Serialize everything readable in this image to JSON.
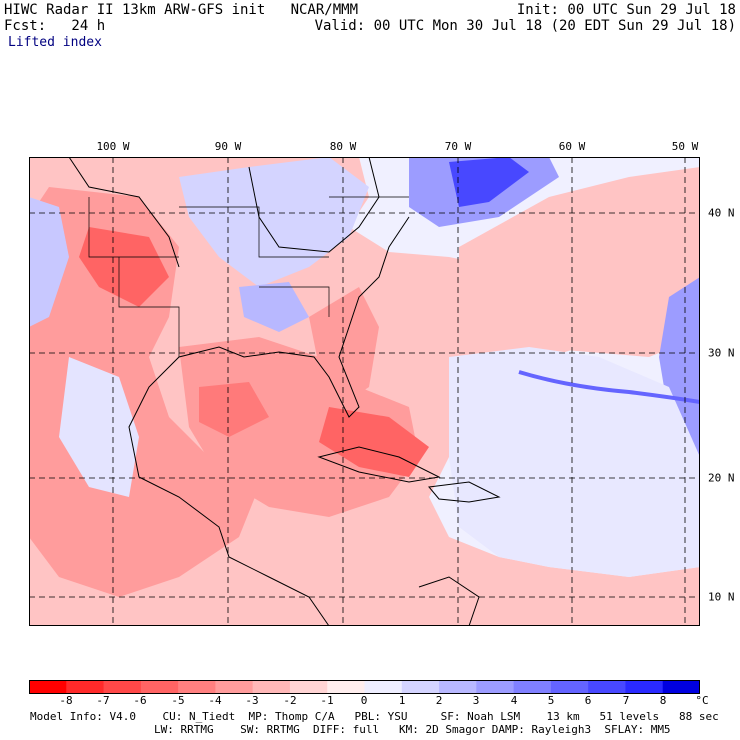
{
  "header": {
    "line1_left": "HIWC Radar II 13km ARW-GFS init   NCAR/MMM",
    "line1_right": "Init: 00 UTC Sun 29 Jul 18",
    "line2_left": "Fcst:   24 h",
    "line2_right": "Valid: 00 UTC Mon 30 Jul 18 (20 EDT Sun 29 Jul 18)",
    "field_name": "Lifted index"
  },
  "map": {
    "lon_labels": [
      "100 W",
      "90 W",
      "80 W",
      "70 W",
      "60 W",
      "50 W"
    ],
    "lat_labels": [
      "40 N",
      "30 N",
      "20 N",
      "10 N"
    ],
    "color_scale": {
      "unit": "°C",
      "tick_labels": [
        "-8",
        "-7",
        "-6",
        "-5",
        "-4",
        "-3",
        "-2",
        "-1",
        "0",
        "1",
        "2",
        "3",
        "4",
        "5",
        "6",
        "7",
        "8"
      ],
      "colors": [
        "#ff0000",
        "#ff2a2a",
        "#ff4848",
        "#ff6464",
        "#ff8080",
        "#ff9c9c",
        "#ffb8b8",
        "#ffd4d4",
        "#ffeeee",
        "#eeeeff",
        "#d4d4ff",
        "#b8b8ff",
        "#9c9cff",
        "#8080ff",
        "#6464ff",
        "#4848ff",
        "#2a2aff",
        "#0000e0"
      ]
    },
    "land_color": "#ffb0b0",
    "ocean_color": "#f0f0ff"
  },
  "footer": {
    "line1": "Model Info: V4.0    CU: N_Tiedt  MP: Thomp C/A   PBL: YSU     SF: Noah LSM    13 km   51 levels   88 sec",
    "line2": "LW: RRTMG    SW: RRTMG  DIFF: full   KM: 2D Smagor DAMP: Rayleigh3  SFLAY: MM5"
  }
}
